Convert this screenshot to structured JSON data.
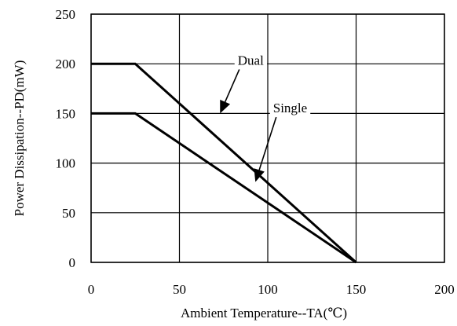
{
  "chart_data": {
    "type": "line",
    "xlabel": "Ambient Temperature--TA(℃)",
    "ylabel": "Power Dissipation--PD(mW)",
    "xlim": [
      0,
      200
    ],
    "ylim": [
      0,
      250
    ],
    "x_ticks": [
      "0",
      "50",
      "100",
      "150",
      "200"
    ],
    "y_ticks": [
      "0",
      "50",
      "100",
      "150",
      "200",
      "250"
    ],
    "grid": true,
    "series": [
      {
        "name": "Dual",
        "x": [
          0,
          25,
          150
        ],
        "y": [
          200,
          200,
          0
        ]
      },
      {
        "name": "Single",
        "x": [
          0,
          25,
          150
        ],
        "y": [
          150,
          150,
          0
        ]
      }
    ],
    "annotations": [
      {
        "text": "Dual",
        "series": "Dual",
        "arrow_to": [
          73,
          150
        ]
      },
      {
        "text": "Single",
        "series": "Single",
        "arrow_to": [
          93,
          81
        ]
      }
    ]
  }
}
